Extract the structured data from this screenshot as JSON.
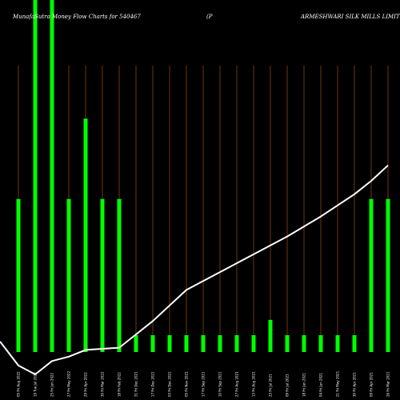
{
  "chart_data": {
    "type": "bar",
    "title": {
      "left": "MunafaSutra Money Flow  Charts for 540467",
      "middle": "(P",
      "right": "ARMESHWARI SILK MILLS LIMIT"
    },
    "categories": [
      "05 Fri Aug 2022",
      "19 Tue Jul 2022",
      "25 Fri Jun 2022",
      "27 Fri May 2022",
      "29 Fri Apr 2022",
      "30 Fri Mar 2022",
      "18 Fri Feb 2022",
      "31 Fri Dec 2021",
      "17 Fri Dec 2021",
      "03 Fri Dec 2021",
      "05 Fri Nov 2021",
      "17 Fri Sep 2021",
      "10 Fri Sep 2021",
      "27 Fri Aug 2021",
      "13 Fri Aug 2021",
      "23 Fri Jul 2021",
      "09 Fri Jul 2021",
      "18 Fri Jun 2021",
      "04 Fri Jun 2021",
      "21 Fri May 2021",
      "30 Fri Apr 2021",
      "09 Fri Apr 2021",
      "26 Fri Mar 2021"
    ],
    "series": [
      {
        "type": "bar",
        "color": "#00ff00",
        "values": [
          200,
          460,
          460,
          200,
          305,
          200,
          200,
          22,
          22,
          22,
          22,
          22,
          22,
          22,
          22,
          42,
          22,
          22,
          22,
          22,
          22,
          200,
          200
        ]
      },
      {
        "type": "line",
        "color": "#ffffff",
        "values": [
          0.04,
          0,
          0.06,
          0.08,
          0.11,
          0.115,
          0.12,
          0.18,
          0.24,
          0.31,
          0.38,
          0.42,
          0.46,
          0.5,
          0.54,
          0.58,
          0.62,
          0.665,
          0.71,
          0.76,
          0.81,
          0.87,
          0.94
        ]
      }
    ],
    "ylim": [
      0,
      460
    ],
    "line_ylim": [
      0,
      1
    ],
    "grid": "vertical",
    "colors": {
      "background": "#000000",
      "grid": "#8b4513",
      "bar": "#00ff00",
      "line": "#ffffff",
      "text": "#ffffff"
    }
  }
}
